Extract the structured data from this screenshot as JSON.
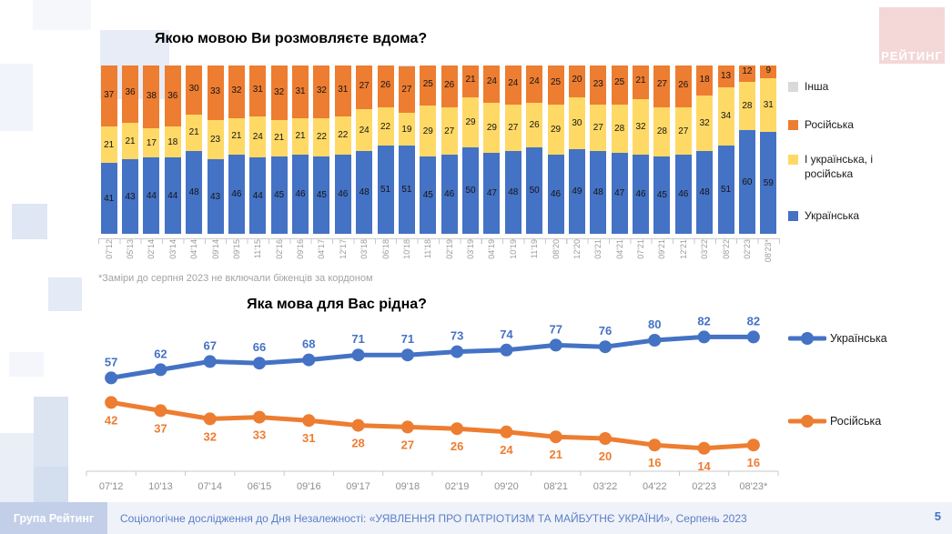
{
  "logo": {
    "text": "РЕЙТИНГ"
  },
  "footer": {
    "brand": "Група Рейтинг",
    "text": "Соціологічне дослідження до Дня Незалежності: «УЯВЛЕННЯ ПРО ПАТРІОТИЗМ ТА МАЙБУТНЄ УКРАЇНИ», Серпень 2023",
    "page": "5"
  },
  "chart_data": [
    {
      "type": "bar",
      "stacked": true,
      "title": "Якою мовою Ви розмовляєте вдома?",
      "footnote": "*Заміри до серпня 2023 не включали біженців за кордоном",
      "unit": "%",
      "ylim": [
        0,
        100
      ],
      "legend_position": "right",
      "legend": [
        {
          "label": "Інша",
          "color": "#D9D9D9"
        },
        {
          "label": "Російська",
          "color": "#ED7D31"
        },
        {
          "label": "І українська, і російська",
          "color": "#FFD966"
        },
        {
          "label": "Українська",
          "color": "#4472C4"
        }
      ],
      "categories": [
        "07'12",
        "05'13",
        "02'14",
        "03'14",
        "04'14",
        "09'14",
        "09'15",
        "11'15",
        "02'16",
        "09'16",
        "04'17",
        "12'17",
        "03'18",
        "06'18",
        "10'18",
        "11'18",
        "02'19",
        "03'19",
        "04'19",
        "10'19",
        "11'19",
        "08'20",
        "12'20",
        "03'21",
        "04'21",
        "07'21",
        "09'21",
        "12'21",
        "03'22",
        "08'22",
        "02'23",
        "08'23*"
      ],
      "series": [
        {
          "name": "Українська",
          "color": "#4472C4",
          "values": [
            41,
            43,
            44,
            44,
            48,
            43,
            46,
            44,
            45,
            46,
            45,
            46,
            48,
            51,
            51,
            45,
            46,
            50,
            47,
            48,
            50,
            46,
            49,
            48,
            47,
            46,
            45,
            46,
            48,
            51,
            60,
            59
          ]
        },
        {
          "name": "І українська, і російська",
          "color": "#FFD966",
          "values": [
            21,
            21,
            17,
            18,
            21,
            23,
            21,
            24,
            21,
            21,
            22,
            22,
            24,
            22,
            19,
            29,
            27,
            29,
            29,
            27,
            26,
            29,
            30,
            27,
            28,
            32,
            28,
            27,
            32,
            34,
            28,
            31
          ]
        },
        {
          "name": "Російська",
          "color": "#ED7D31",
          "values": [
            37,
            36,
            38,
            36,
            30,
            33,
            32,
            31,
            32,
            31,
            32,
            31,
            27,
            26,
            27,
            25,
            26,
            21,
            24,
            24,
            24,
            25,
            20,
            23,
            25,
            21,
            27,
            26,
            18,
            13,
            12,
            9
          ]
        },
        {
          "name": "Інша",
          "color": "#D9D9D9",
          "values": null,
          "note": "unlabeled remainder to 100%"
        }
      ]
    },
    {
      "type": "line",
      "title": "Яка мова для Вас рідна?",
      "legend_position": "right",
      "ylim": [
        0,
        100
      ],
      "categories": [
        "07'12",
        "10'13",
        "07'14",
        "06'15",
        "09'16",
        "09'17",
        "09'18",
        "02'19",
        "09'20",
        "08'21",
        "03'22",
        "04'22",
        "02'23",
        "08'23*"
      ],
      "series": [
        {
          "name": "Українська",
          "color": "#4472C4",
          "values": [
            57,
            62,
            67,
            66,
            68,
            71,
            71,
            73,
            74,
            77,
            76,
            80,
            82,
            82
          ]
        },
        {
          "name": "Російська",
          "color": "#ED7D31",
          "values": [
            42,
            37,
            32,
            33,
            31,
            28,
            27,
            26,
            24,
            21,
            20,
            16,
            14,
            16
          ]
        }
      ]
    }
  ]
}
